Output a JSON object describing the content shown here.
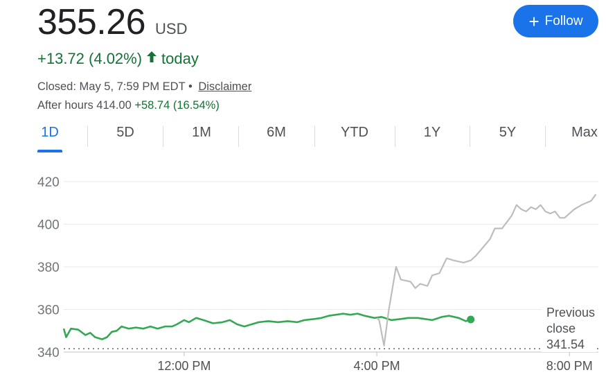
{
  "quote": {
    "price": "355.26",
    "currency": "USD",
    "change": "+13.72 (4.02%)",
    "change_suffix": "today",
    "closed_label": "Closed: May 5, 7:59 PM EDT •",
    "disclaimer": "Disclaimer",
    "after_hours_label": "After hours 414.00",
    "after_hours_change": "+58.74 (16.54%)"
  },
  "follow_button": {
    "label": "Follow"
  },
  "range_tabs": [
    {
      "label": "1D",
      "active": true
    },
    {
      "label": "5D",
      "active": false
    },
    {
      "label": "1M",
      "active": false
    },
    {
      "label": "6M",
      "active": false
    },
    {
      "label": "YTD",
      "active": false
    },
    {
      "label": "1Y",
      "active": false
    },
    {
      "label": "5Y",
      "active": false
    },
    {
      "label": "Max",
      "active": false
    }
  ],
  "colors": {
    "regular": "#34a853",
    "after_hours": "#bdbdbd",
    "accent": "#1a73e8",
    "positive": "#137333"
  },
  "chart_data": {
    "type": "line",
    "title": "",
    "xlabel": "",
    "ylabel": "",
    "x_ticks": [
      "12:00 PM",
      "4:00 PM",
      "8:00 PM"
    ],
    "y_ticks": [
      340,
      360,
      380,
      400,
      420
    ],
    "ylim": [
      340,
      420
    ],
    "xlim_hours": [
      9.5,
      20.0
    ],
    "previous_close": {
      "label": [
        "Previous",
        "close",
        "341.54"
      ],
      "value": 341.54
    },
    "series": [
      {
        "segment": "regular",
        "points": [
          [
            9.5,
            351
          ],
          [
            9.55,
            347
          ],
          [
            9.65,
            351
          ],
          [
            9.8,
            350.5
          ],
          [
            9.95,
            348
          ],
          [
            10.05,
            349
          ],
          [
            10.15,
            347
          ],
          [
            10.3,
            346
          ],
          [
            10.4,
            347
          ],
          [
            10.5,
            349.5
          ],
          [
            10.6,
            350
          ],
          [
            10.7,
            352
          ],
          [
            10.85,
            351
          ],
          [
            11.0,
            351.5
          ],
          [
            11.15,
            351
          ],
          [
            11.3,
            352
          ],
          [
            11.45,
            351
          ],
          [
            11.6,
            352
          ],
          [
            11.75,
            352
          ],
          [
            11.85,
            353
          ],
          [
            12.0,
            355
          ],
          [
            12.1,
            354
          ],
          [
            12.25,
            356
          ],
          [
            12.4,
            355
          ],
          [
            12.6,
            353.5
          ],
          [
            12.8,
            354
          ],
          [
            12.95,
            355
          ],
          [
            13.1,
            353
          ],
          [
            13.25,
            352
          ],
          [
            13.4,
            353
          ],
          [
            13.55,
            354
          ],
          [
            13.75,
            354.5
          ],
          [
            13.95,
            354
          ],
          [
            14.15,
            354.5
          ],
          [
            14.35,
            354
          ],
          [
            14.5,
            355
          ],
          [
            14.7,
            355.5
          ],
          [
            14.85,
            356
          ],
          [
            15.0,
            357
          ],
          [
            15.15,
            357.5
          ],
          [
            15.3,
            358
          ],
          [
            15.45,
            357.5
          ],
          [
            15.6,
            358
          ],
          [
            15.75,
            357
          ],
          [
            15.95,
            356
          ],
          [
            16.1,
            356.5
          ],
          [
            16.3,
            355
          ],
          [
            16.5,
            355.5
          ],
          [
            16.65,
            356
          ],
          [
            16.85,
            356
          ],
          [
            17.0,
            355.5
          ],
          [
            17.15,
            355
          ],
          [
            17.35,
            356.5
          ],
          [
            17.5,
            357
          ],
          [
            17.7,
            356
          ],
          [
            17.85,
            354.5
          ],
          [
            17.95,
            355.3
          ]
        ]
      },
      {
        "segment": "after_hours",
        "points": [
          [
            16.0,
            356
          ],
          [
            16.05,
            355
          ],
          [
            16.15,
            343
          ],
          [
            16.25,
            360
          ],
          [
            16.4,
            380
          ],
          [
            16.5,
            374
          ],
          [
            16.7,
            373
          ],
          [
            16.8,
            370
          ],
          [
            16.9,
            372
          ],
          [
            17.05,
            371
          ],
          [
            17.15,
            376
          ],
          [
            17.3,
            377
          ],
          [
            17.45,
            384
          ],
          [
            17.6,
            383
          ],
          [
            17.8,
            382
          ],
          [
            17.95,
            383
          ],
          [
            18.05,
            385
          ],
          [
            18.2,
            389
          ],
          [
            18.35,
            393
          ],
          [
            18.45,
            398
          ],
          [
            18.6,
            398
          ],
          [
            18.7,
            401
          ],
          [
            18.8,
            404
          ],
          [
            18.9,
            409
          ],
          [
            19.0,
            407
          ],
          [
            19.1,
            406
          ],
          [
            19.2,
            408
          ],
          [
            19.3,
            407
          ],
          [
            19.4,
            409
          ],
          [
            19.5,
            406
          ],
          [
            19.6,
            405
          ],
          [
            19.7,
            406
          ],
          [
            19.8,
            403
          ],
          [
            19.9,
            403
          ],
          [
            20.0,
            405
          ],
          [
            20.1,
            407
          ],
          [
            20.25,
            409
          ],
          [
            20.35,
            410
          ],
          [
            20.45,
            411
          ],
          [
            20.55,
            414
          ]
        ]
      }
    ]
  }
}
